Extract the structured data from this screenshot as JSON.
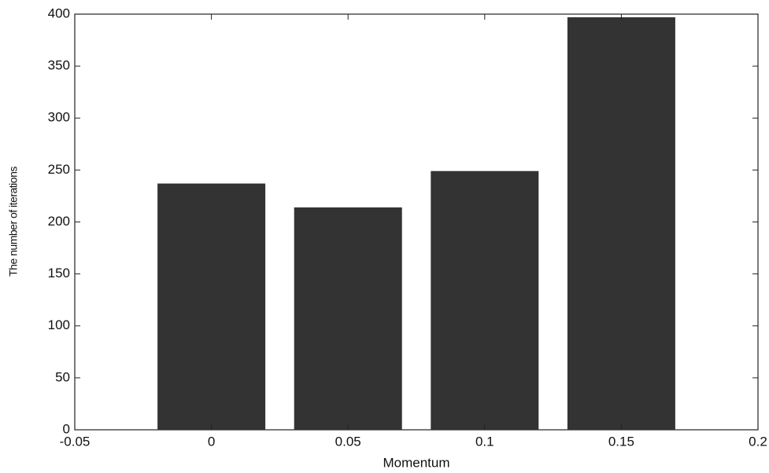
{
  "chart_data": {
    "type": "bar",
    "x": [
      0,
      0.05,
      0.1,
      0.15
    ],
    "values": [
      237,
      214,
      249,
      397
    ],
    "color": "#333333",
    "xlabel": "Momentum",
    "ylabel": "The number of iterations",
    "xlim": [
      -0.05,
      0.2
    ],
    "xticks": [
      -0.05,
      0,
      0.05,
      0.1,
      0.15,
      0.2
    ],
    "ylim": [
      0,
      400
    ],
    "yticks": [
      0,
      50,
      100,
      150,
      200,
      250,
      300,
      350,
      400
    ]
  }
}
